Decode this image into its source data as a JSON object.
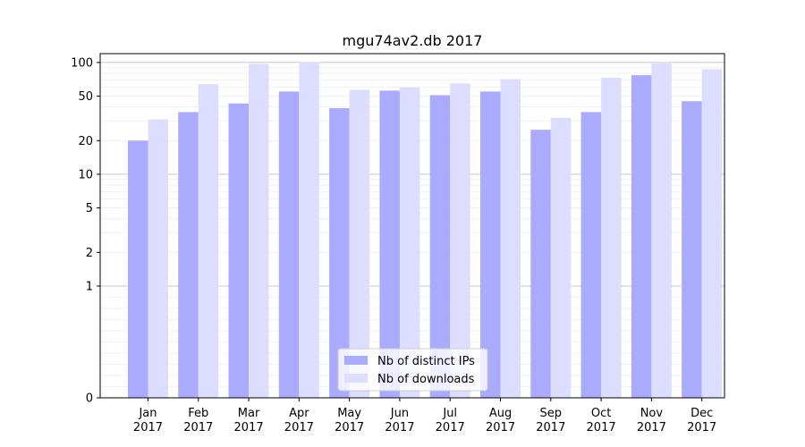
{
  "chart_data": {
    "type": "bar",
    "title": "mgu74av2.db 2017",
    "xlabel": "",
    "ylabel": "",
    "yscale": "symlog",
    "ylim": [
      0,
      120
    ],
    "yticks": [
      0,
      1,
      2,
      5,
      10,
      20,
      50,
      100
    ],
    "ytick_labels": [
      "0",
      "1",
      "2",
      "5",
      "10",
      "20",
      "50",
      "100"
    ],
    "categories": [
      "Jan",
      "Feb",
      "Mar",
      "Apr",
      "May",
      "Jun",
      "Jul",
      "Aug",
      "Sep",
      "Oct",
      "Nov",
      "Dec"
    ],
    "category_sublabel": "2017",
    "series": [
      {
        "name": "Nb of distinct IPs",
        "color": "#aaaaff",
        "values": [
          20,
          36,
          43,
          55,
          39,
          56,
          51,
          55,
          25,
          36,
          77,
          45
        ]
      },
      {
        "name": "Nb of downloads",
        "color": "#ddddff",
        "values": [
          31,
          64,
          97,
          101,
          57,
          60,
          65,
          71,
          32,
          73,
          98,
          87
        ]
      }
    ],
    "grid": true,
    "legend_position": "bottom-center"
  }
}
